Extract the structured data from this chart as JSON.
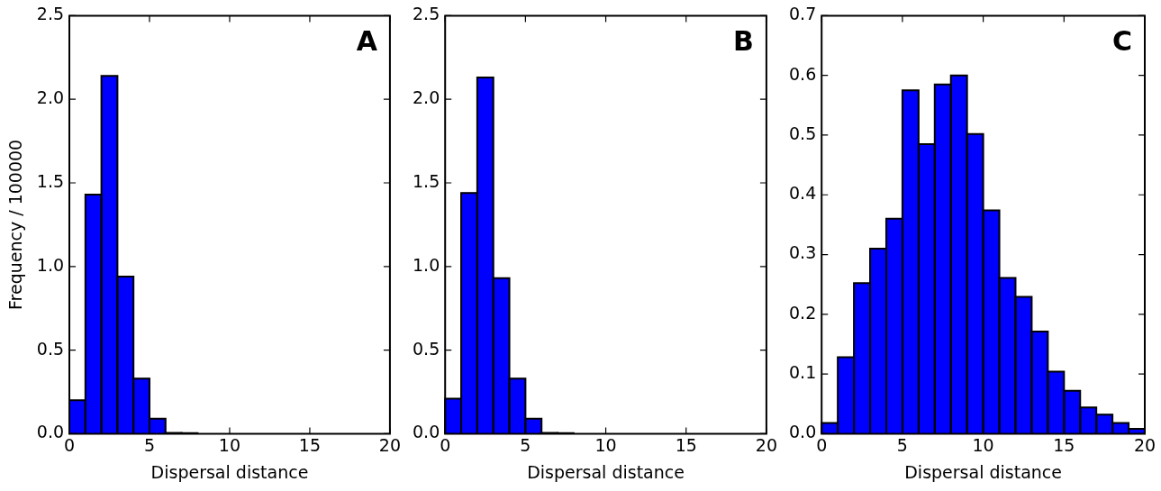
{
  "chart_data": [
    {
      "type": "histogram",
      "bins": [
        0,
        1,
        2,
        3,
        4,
        5,
        6,
        7,
        8
      ],
      "values": [
        0.2,
        1.43,
        2.14,
        0.94,
        0.33,
        0.09,
        0.005,
        0.003
      ],
      "color": "#0000ff",
      "xlim": [
        0,
        20
      ],
      "xticks": [
        0,
        5,
        10,
        15,
        20
      ],
      "ylim": [
        0,
        2.5
      ],
      "yticks": [
        {
          "value": 0,
          "label": "0.0"
        },
        {
          "value": 0.5,
          "label": "0.5"
        },
        {
          "value": 1,
          "label": "1.0"
        },
        {
          "value": 1.5,
          "label": "1.5"
        },
        {
          "value": 2,
          "label": "2.0"
        },
        {
          "value": 2.5,
          "label": "2.5"
        }
      ],
      "xlabel": "Dispersal distance",
      "ylabel": "Frequency / 100000",
      "annotations": [
        "A"
      ],
      "grid": false
    },
    {
      "type": "histogram",
      "bins": [
        0,
        1,
        2,
        3,
        4,
        5,
        6,
        7,
        8
      ],
      "values": [
        0.21,
        1.44,
        2.13,
        0.93,
        0.33,
        0.09,
        0.005,
        0.003
      ],
      "color": "#0000ff",
      "xlim": [
        0,
        20
      ],
      "xticks": [
        0,
        5,
        10,
        15,
        20
      ],
      "ylim": [
        0,
        2.5
      ],
      "yticks": [
        {
          "value": 0,
          "label": "0.0"
        },
        {
          "value": 0.5,
          "label": "0.5"
        },
        {
          "value": 1,
          "label": "1.0"
        },
        {
          "value": 1.5,
          "label": "1.5"
        },
        {
          "value": 2,
          "label": "2.0"
        },
        {
          "value": 2.5,
          "label": "2.5"
        }
      ],
      "xlabel": "Dispersal distance",
      "annotations": [
        "B"
      ],
      "grid": false
    },
    {
      "type": "histogram",
      "bins": [
        0,
        1,
        2,
        3,
        4,
        5,
        6,
        7,
        8,
        9,
        10,
        11,
        12,
        13,
        14,
        15,
        16,
        17,
        18,
        19,
        20
      ],
      "values": [
        0.018,
        0.128,
        0.252,
        0.31,
        0.36,
        0.575,
        0.485,
        0.585,
        0.6,
        0.502,
        0.374,
        0.261,
        0.229,
        0.171,
        0.104,
        0.072,
        0.044,
        0.032,
        0.018,
        0.008
      ],
      "color": "#0000ff",
      "xlim": [
        0,
        20
      ],
      "xticks": [
        0,
        5,
        10,
        15,
        20
      ],
      "ylim": [
        0,
        0.7
      ],
      "yticks": [
        {
          "value": 0,
          "label": "0.0"
        },
        {
          "value": 0.1,
          "label": "0.1"
        },
        {
          "value": 0.2,
          "label": "0.2"
        },
        {
          "value": 0.3,
          "label": "0.3"
        },
        {
          "value": 0.4,
          "label": "0.4"
        },
        {
          "value": 0.5,
          "label": "0.5"
        },
        {
          "value": 0.6,
          "label": "0.6"
        },
        {
          "value": 0.7,
          "label": "0.7"
        }
      ],
      "xlabel": "Dispersal distance",
      "annotations": [
        "C"
      ],
      "grid": false
    }
  ]
}
